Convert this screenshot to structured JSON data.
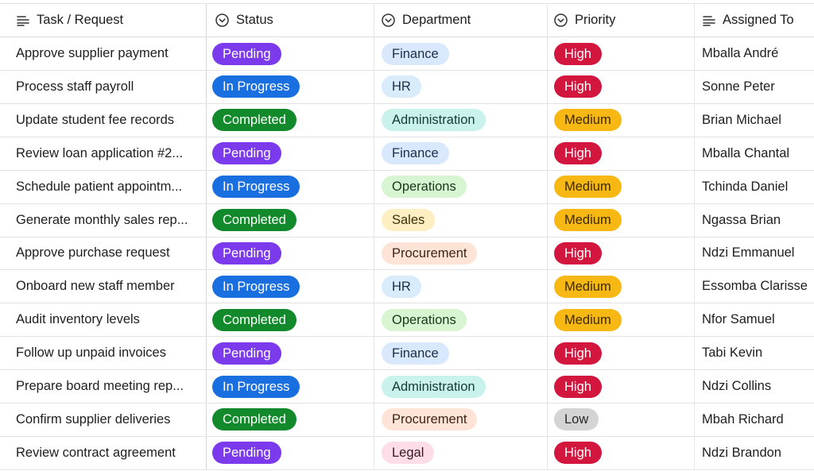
{
  "colors": {
    "Pending": "#7c3aed",
    "In Progress": "#1a6fe0",
    "Completed": "#128a2c",
    "High": "#d3163e",
    "Medium": "#f7b813",
    "Low": "#d4d4d4",
    "dept": {
      "Finance": {
        "bg": "#d9e8fc",
        "fg": "#1c2d4a"
      },
      "HR": {
        "bg": "#d9ecfb",
        "fg": "#1c2d4a"
      },
      "Administration": {
        "bg": "#c9f2ec",
        "fg": "#163a35"
      },
      "Operations": {
        "bg": "#d6f5d0",
        "fg": "#173a1a"
      },
      "Sales": {
        "bg": "#fdefc2",
        "fg": "#3e2f0a"
      },
      "Procurement": {
        "bg": "#fde4d7",
        "fg": "#3e2316"
      },
      "Legal": {
        "bg": "#fcdde8",
        "fg": "#3e1625"
      }
    }
  },
  "columns": [
    {
      "key": "task",
      "label": "Task / Request",
      "icon": "text-lines-icon"
    },
    {
      "key": "status",
      "label": "Status",
      "icon": "chevron-circle-icon"
    },
    {
      "key": "department",
      "label": "Department",
      "icon": "chevron-circle-icon"
    },
    {
      "key": "priority",
      "label": "Priority",
      "icon": "chevron-circle-icon"
    },
    {
      "key": "assigned",
      "label": "Assigned To",
      "icon": "text-lines-icon"
    }
  ],
  "rows": [
    {
      "task": "Approve supplier payment",
      "status": "Pending",
      "department": "Finance",
      "priority": "High",
      "assigned": "Mballa André"
    },
    {
      "task": "Process staff payroll",
      "status": "In Progress",
      "department": "HR",
      "priority": "High",
      "assigned": "Sonne Peter"
    },
    {
      "task": "Update student fee records",
      "status": "Completed",
      "department": "Administration",
      "priority": "Medium",
      "assigned": "Brian Michael"
    },
    {
      "task": "Review loan application #2...",
      "status": "Pending",
      "department": "Finance",
      "priority": "High",
      "assigned": "Mballa Chantal"
    },
    {
      "task": "Schedule patient appointm...",
      "status": "In Progress",
      "department": "Operations",
      "priority": "Medium",
      "assigned": "Tchinda Daniel"
    },
    {
      "task": "Generate monthly sales rep...",
      "status": "Completed",
      "department": "Sales",
      "priority": "Medium",
      "assigned": "Ngassa Brian"
    },
    {
      "task": "Approve purchase request",
      "status": "Pending",
      "department": "Procurement",
      "priority": "High",
      "assigned": "Ndzi Emmanuel"
    },
    {
      "task": "Onboard new staff member",
      "status": "In Progress",
      "department": "HR",
      "priority": "Medium",
      "assigned": "Essomba Clarisse"
    },
    {
      "task": "Audit inventory levels",
      "status": "Completed",
      "department": "Operations",
      "priority": "Medium",
      "assigned": "Nfor Samuel"
    },
    {
      "task": "Follow up unpaid invoices",
      "status": "Pending",
      "department": "Finance",
      "priority": "High",
      "assigned": "Tabi Kevin"
    },
    {
      "task": "Prepare board meeting rep...",
      "status": "In Progress",
      "department": "Administration",
      "priority": "High",
      "assigned": "Ndzi Collins"
    },
    {
      "task": "Confirm supplier deliveries",
      "status": "Completed",
      "department": "Procurement",
      "priority": "Low",
      "assigned": "Mbah Richard"
    },
    {
      "task": "Review contract agreement",
      "status": "Pending",
      "department": "Legal",
      "priority": "High",
      "assigned": "Ndzi Brandon"
    }
  ]
}
